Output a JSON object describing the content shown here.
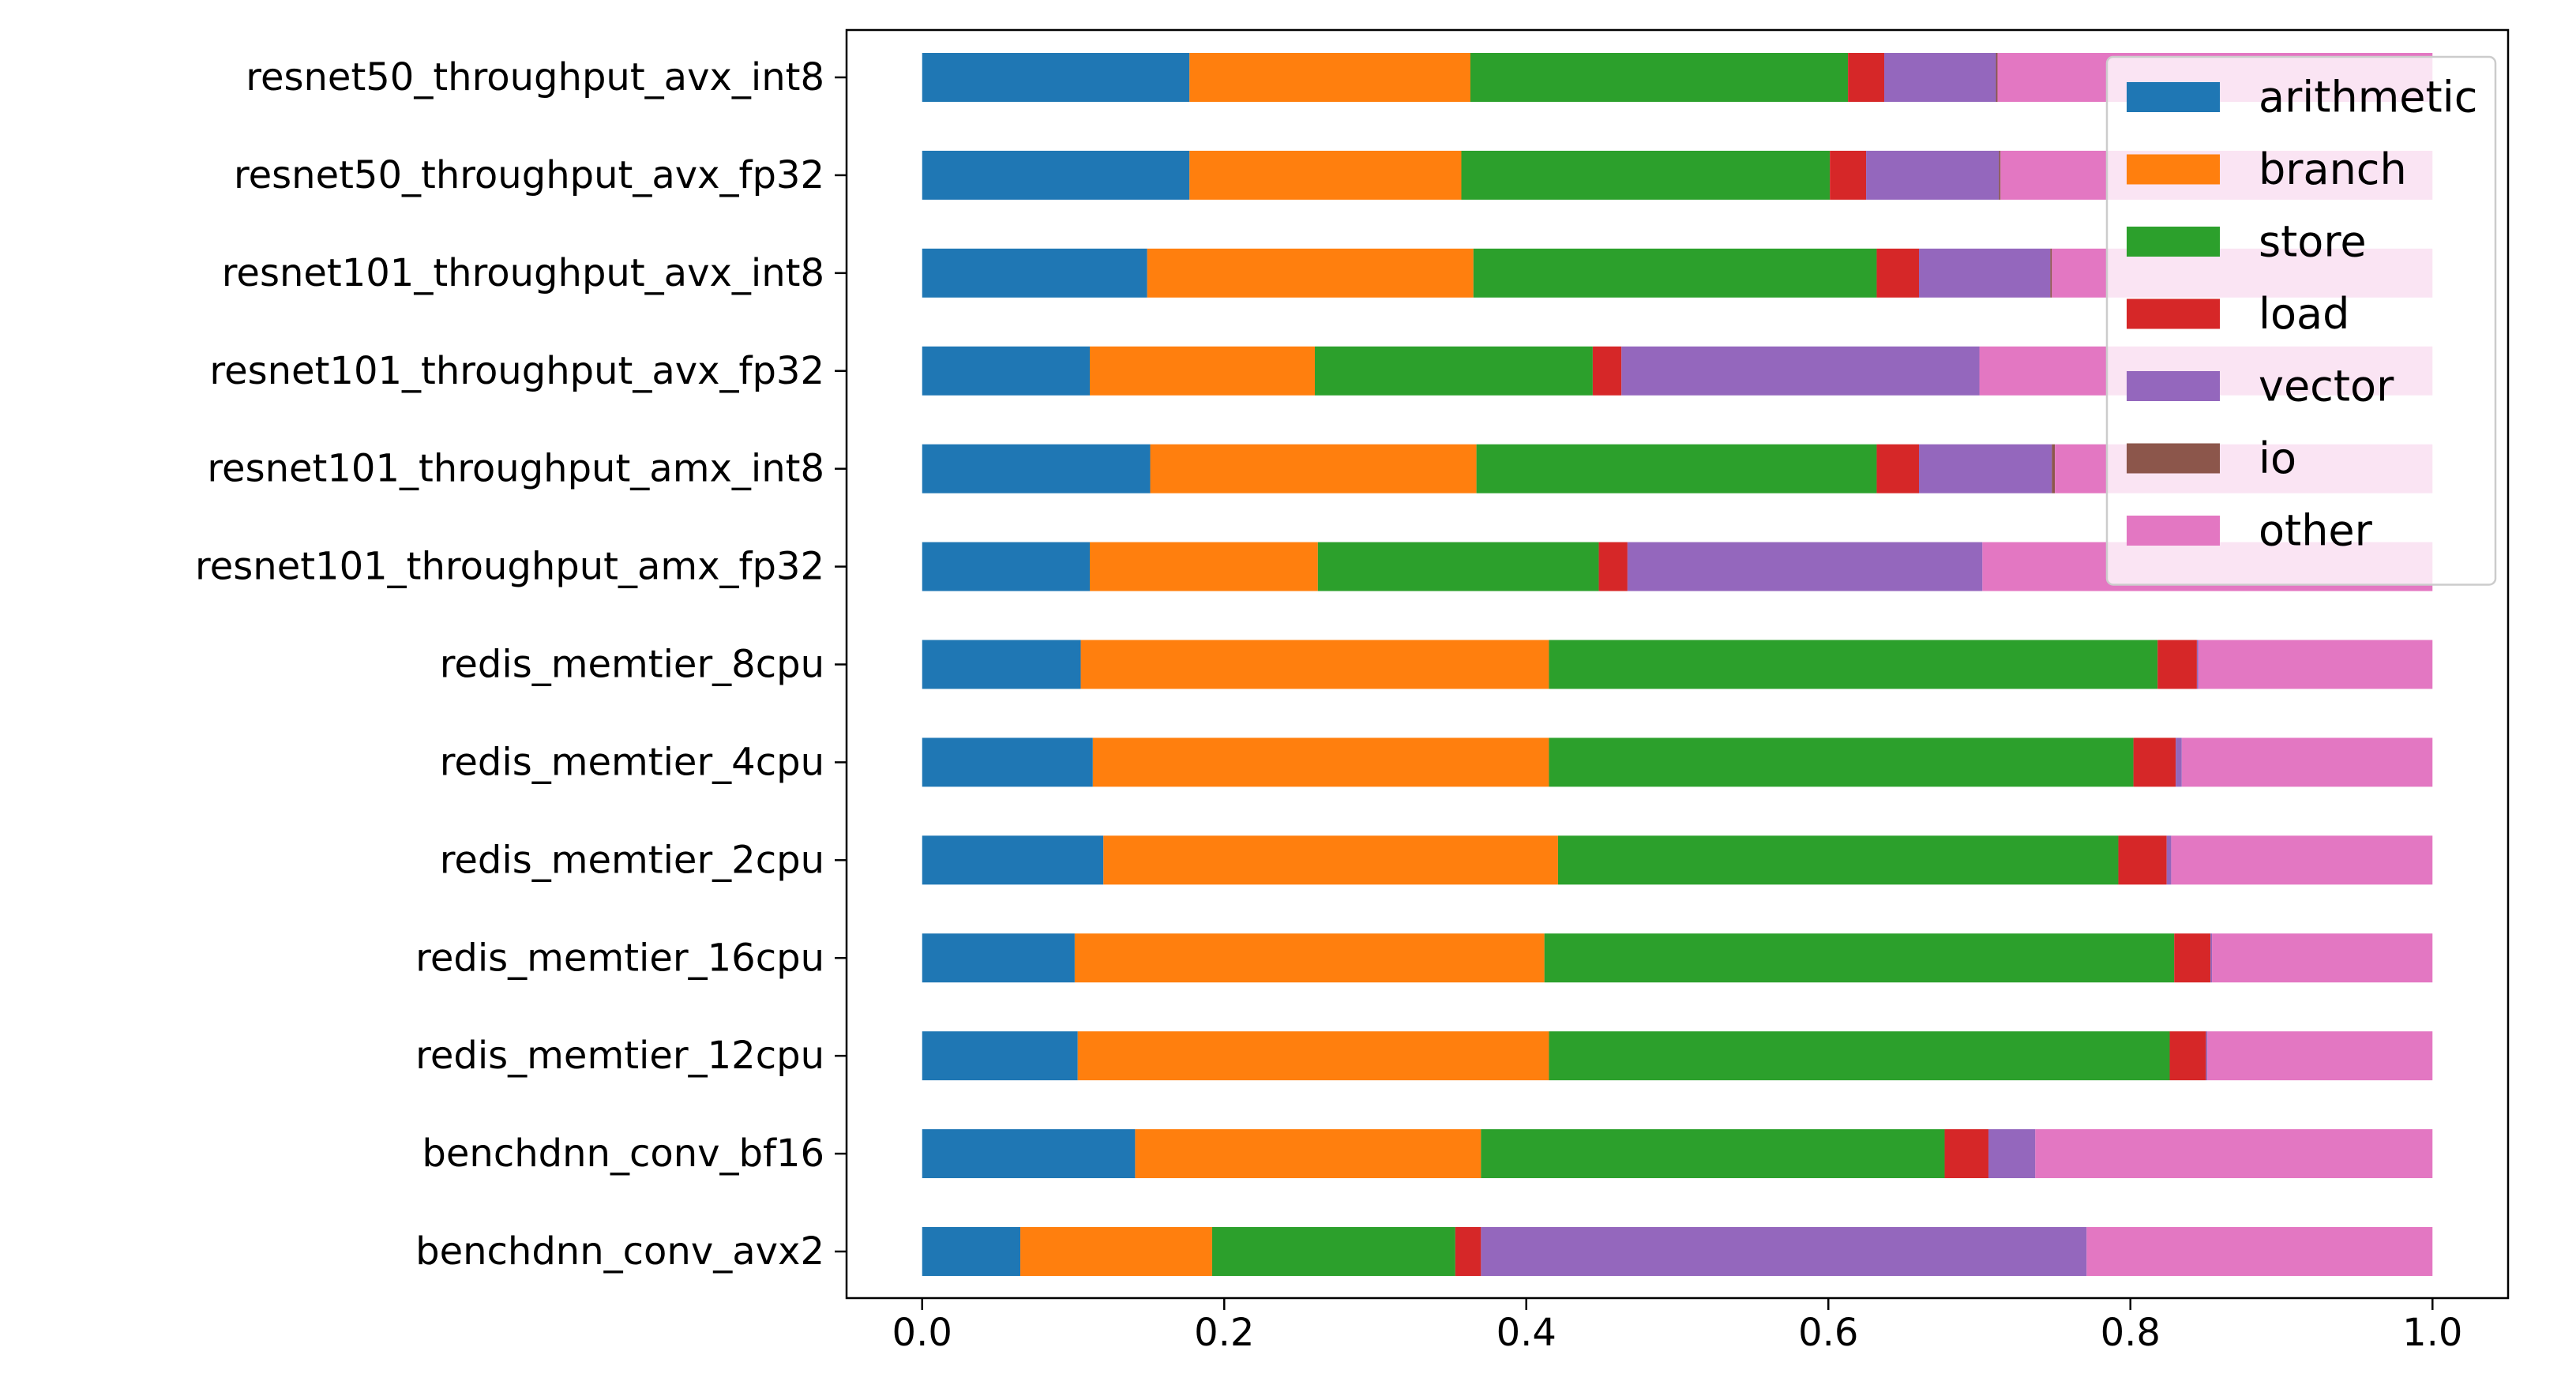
{
  "chart_data": {
    "type": "bar",
    "orientation": "horizontal",
    "stacked": true,
    "title": "",
    "xlabel": "",
    "ylabel": "",
    "xlim": [
      0.0,
      1.0
    ],
    "x_ticks": [
      0.0,
      0.2,
      0.4,
      0.6,
      0.8,
      1.0
    ],
    "x_tick_labels": [
      "0.0",
      "0.2",
      "0.4",
      "0.6",
      "0.8",
      "1.0"
    ],
    "grid": false,
    "legend_position": "top-right",
    "categories": [
      "resnet50_throughput_avx_int8",
      "resnet50_throughput_avx_fp32",
      "resnet101_throughput_avx_int8",
      "resnet101_throughput_avx_fp32",
      "resnet101_throughput_amx_int8",
      "resnet101_throughput_amx_fp32",
      "redis_memtier_8cpu",
      "redis_memtier_4cpu",
      "redis_memtier_2cpu",
      "redis_memtier_16cpu",
      "redis_memtier_12cpu",
      "benchdnn_conv_bf16",
      "benchdnn_conv_avx2"
    ],
    "series": [
      {
        "name": "arithmetic",
        "color": "#1f77b4",
        "values": [
          0.177,
          0.177,
          0.149,
          0.111,
          0.151,
          0.111,
          0.105,
          0.113,
          0.12,
          0.101,
          0.103,
          0.141,
          0.065
        ]
      },
      {
        "name": "branch",
        "color": "#ff7f0e",
        "values": [
          0.186,
          0.18,
          0.216,
          0.149,
          0.216,
          0.151,
          0.31,
          0.302,
          0.301,
          0.311,
          0.312,
          0.229,
          0.127
        ]
      },
      {
        "name": "store",
        "color": "#2ca02c",
        "values": [
          0.25,
          0.244,
          0.267,
          0.184,
          0.265,
          0.186,
          0.403,
          0.387,
          0.371,
          0.417,
          0.411,
          0.307,
          0.161
        ]
      },
      {
        "name": "load",
        "color": "#d62728",
        "values": [
          0.024,
          0.024,
          0.028,
          0.019,
          0.028,
          0.019,
          0.026,
          0.028,
          0.032,
          0.024,
          0.024,
          0.029,
          0.017
        ]
      },
      {
        "name": "vector",
        "color": "#9467bd",
        "values": [
          0.074,
          0.088,
          0.087,
          0.237,
          0.088,
          0.235,
          0.001,
          0.004,
          0.003,
          0.001,
          0.001,
          0.031,
          0.401
        ]
      },
      {
        "name": "io",
        "color": "#8c564b",
        "values": [
          0.001,
          0.001,
          0.001,
          0.0,
          0.002,
          0.0,
          0.0,
          0.0,
          0.0,
          0.0,
          0.0,
          0.0,
          0.0
        ]
      },
      {
        "name": "other",
        "color": "#e377c2",
        "values": [
          0.288,
          0.286,
          0.252,
          0.3,
          0.25,
          0.298,
          0.155,
          0.166,
          0.173,
          0.146,
          0.149,
          0.263,
          0.229
        ]
      }
    ]
  }
}
